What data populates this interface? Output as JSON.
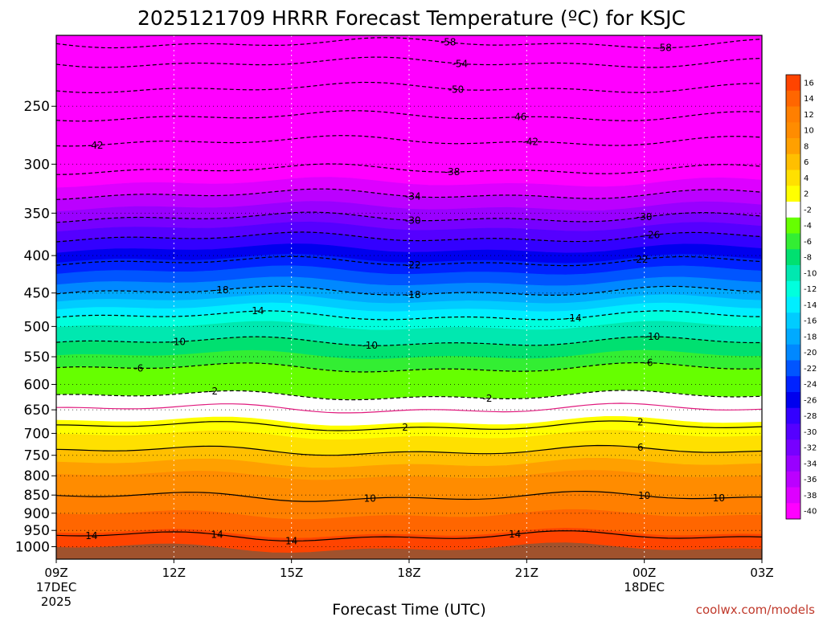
{
  "chart_data": {
    "type": "heatmap",
    "title": "2025121709 HRRR Forecast Temperature (ºC) for KSJC",
    "xlabel": "Forecast Time (UTC)",
    "ylabel": "",
    "credit": "coolwx.com/models",
    "x_ticks": [
      {
        "label": "09Z",
        "sub1": "17DEC",
        "sub2": "2025",
        "hours": 0
      },
      {
        "label": "12Z",
        "sub1": "",
        "sub2": "",
        "hours": 3
      },
      {
        "label": "15Z",
        "sub1": "",
        "sub2": "",
        "hours": 6
      },
      {
        "label": "18Z",
        "sub1": "",
        "sub2": "",
        "hours": 9
      },
      {
        "label": "21Z",
        "sub1": "",
        "sub2": "",
        "hours": 12
      },
      {
        "label": "00Z",
        "sub1": "18DEC",
        "sub2": "",
        "hours": 15
      },
      {
        "label": "03Z",
        "sub1": "",
        "sub2": "",
        "hours": 18
      }
    ],
    "y_ticks": [
      "250",
      "300",
      "350",
      "400",
      "450",
      "500",
      "550",
      "600",
      "650",
      "700",
      "750",
      "800",
      "850",
      "900",
      "950",
      "1000"
    ],
    "y_scale": "log",
    "ylim_hpa": [
      200,
      1040
    ],
    "colorbar": {
      "labels": [
        "16",
        "14",
        "12",
        "10",
        "8",
        "6",
        "4",
        "2",
        "-2",
        "-4",
        "-6",
        "-8",
        "-10",
        "-12",
        "-14",
        "-16",
        "-18",
        "-20",
        "-22",
        "-24",
        "-26",
        "-28",
        "-30",
        "-32",
        "-34",
        "-36",
        "-38",
        "-40"
      ],
      "colors": [
        "#ff4400",
        "#ff6600",
        "#ff7f00",
        "#ff8c00",
        "#ffa000",
        "#ffbf00",
        "#ffe000",
        "#ffff00",
        "#ffffff",
        "#66ff00",
        "#33ee33",
        "#00e070",
        "#00e8b0",
        "#00ffdd",
        "#00eeff",
        "#00ccff",
        "#00aaff",
        "#0088ff",
        "#0055ff",
        "#0022ff",
        "#0000ee",
        "#3300ff",
        "#5500ff",
        "#7700ff",
        "#9900ff",
        "#bb00ff",
        "#dd00ff",
        "#ff00ff"
      ]
    },
    "contours": [
      {
        "value": "-58",
        "p": 205,
        "labels": [
          [
            10,
            "-58"
          ],
          [
            15.5,
            "-58"
          ]
        ]
      },
      {
        "value": "-54",
        "p": 218,
        "labels": [
          [
            10.3,
            "-54"
          ]
        ]
      },
      {
        "value": "-50",
        "p": 236,
        "labels": [
          [
            10.2,
            "-50"
          ]
        ]
      },
      {
        "value": "-46",
        "p": 258,
        "labels": [
          [
            11.8,
            "-46"
          ]
        ]
      },
      {
        "value": "-42",
        "p": 279,
        "labels": [
          [
            1,
            "-42"
          ],
          [
            12.1,
            "-42"
          ]
        ]
      },
      {
        "value": "-38",
        "p": 305,
        "labels": [
          [
            10.1,
            "-38"
          ]
        ]
      },
      {
        "value": "-34",
        "p": 330,
        "labels": [
          [
            9.1,
            "-34"
          ]
        ]
      },
      {
        "value": "-30",
        "p": 355,
        "labels": [
          [
            9.1,
            "-30"
          ],
          [
            15,
            "-30"
          ]
        ]
      },
      {
        "value": "-26",
        "p": 378,
        "labels": [
          [
            15.2,
            "-26"
          ]
        ]
      },
      {
        "value": "-22",
        "p": 408,
        "labels": [
          [
            9.1,
            "-22"
          ],
          [
            14.9,
            "-22"
          ]
        ]
      },
      {
        "value": "-18",
        "p": 448,
        "labels": [
          [
            4.2,
            "-18"
          ],
          [
            9.1,
            "-18"
          ]
        ]
      },
      {
        "value": "-14",
        "p": 484,
        "labels": [
          [
            5.1,
            "-14"
          ],
          [
            13.2,
            "-14"
          ]
        ]
      },
      {
        "value": "-10",
        "p": 525,
        "labels": [
          [
            3.1,
            "-10"
          ],
          [
            8,
            "-10"
          ],
          [
            15.2,
            "-10"
          ]
        ]
      },
      {
        "value": "-6",
        "p": 570,
        "labels": [
          [
            2.1,
            "-6"
          ],
          [
            15.1,
            "-6"
          ]
        ]
      },
      {
        "value": "-2",
        "p": 622,
        "labels": [
          [
            4,
            "-2"
          ],
          [
            11,
            "-2"
          ]
        ]
      },
      {
        "value": "0",
        "p": 648,
        "labels": []
      },
      {
        "value": "2",
        "p": 685,
        "labels": [
          [
            8.9,
            "2"
          ],
          [
            14.9,
            "2"
          ]
        ]
      },
      {
        "value": "6",
        "p": 740,
        "labels": [
          [
            14.9,
            "6"
          ]
        ]
      },
      {
        "value": "10",
        "p": 855,
        "labels": [
          [
            8,
            "10"
          ],
          [
            15,
            "10"
          ],
          [
            16.9,
            "10"
          ]
        ]
      },
      {
        "value": "14",
        "p": 968,
        "labels": [
          [
            0.9,
            "14"
          ],
          [
            4.1,
            "14"
          ],
          [
            6,
            "14"
          ],
          [
            11.7,
            "14"
          ]
        ]
      }
    ],
    "bands_hpa": [
      [
        200,
        "#ff00ff"
      ],
      [
        318,
        "#dd00ff"
      ],
      [
        330,
        "#bb00ff"
      ],
      [
        343,
        "#9900ff"
      ],
      [
        355,
        "#7700ff"
      ],
      [
        366,
        "#5500ff"
      ],
      [
        378,
        "#3300ff"
      ],
      [
        392,
        "#0000ee"
      ],
      [
        405,
        "#0022ff"
      ],
      [
        420,
        "#0055ff"
      ],
      [
        435,
        "#0088ff"
      ],
      [
        448,
        "#00aaff"
      ],
      [
        460,
        "#00ccff"
      ],
      [
        472,
        "#00eeff"
      ],
      [
        484,
        "#00ffdd"
      ],
      [
        500,
        "#00e8b0"
      ],
      [
        525,
        "#00e070"
      ],
      [
        548,
        "#33ee33"
      ],
      [
        570,
        "#66ff00"
      ],
      [
        622,
        "#ffffff"
      ],
      [
        675,
        "#ffff00"
      ],
      [
        705,
        "#ffe000"
      ],
      [
        740,
        "#ffbf00"
      ],
      [
        770,
        "#ffa000"
      ],
      [
        800,
        "#ff8c00"
      ],
      [
        855,
        "#ff7f00"
      ],
      [
        905,
        "#ff6600"
      ],
      [
        960,
        "#ff4400"
      ],
      [
        1005,
        "#a0522d"
      ]
    ]
  }
}
